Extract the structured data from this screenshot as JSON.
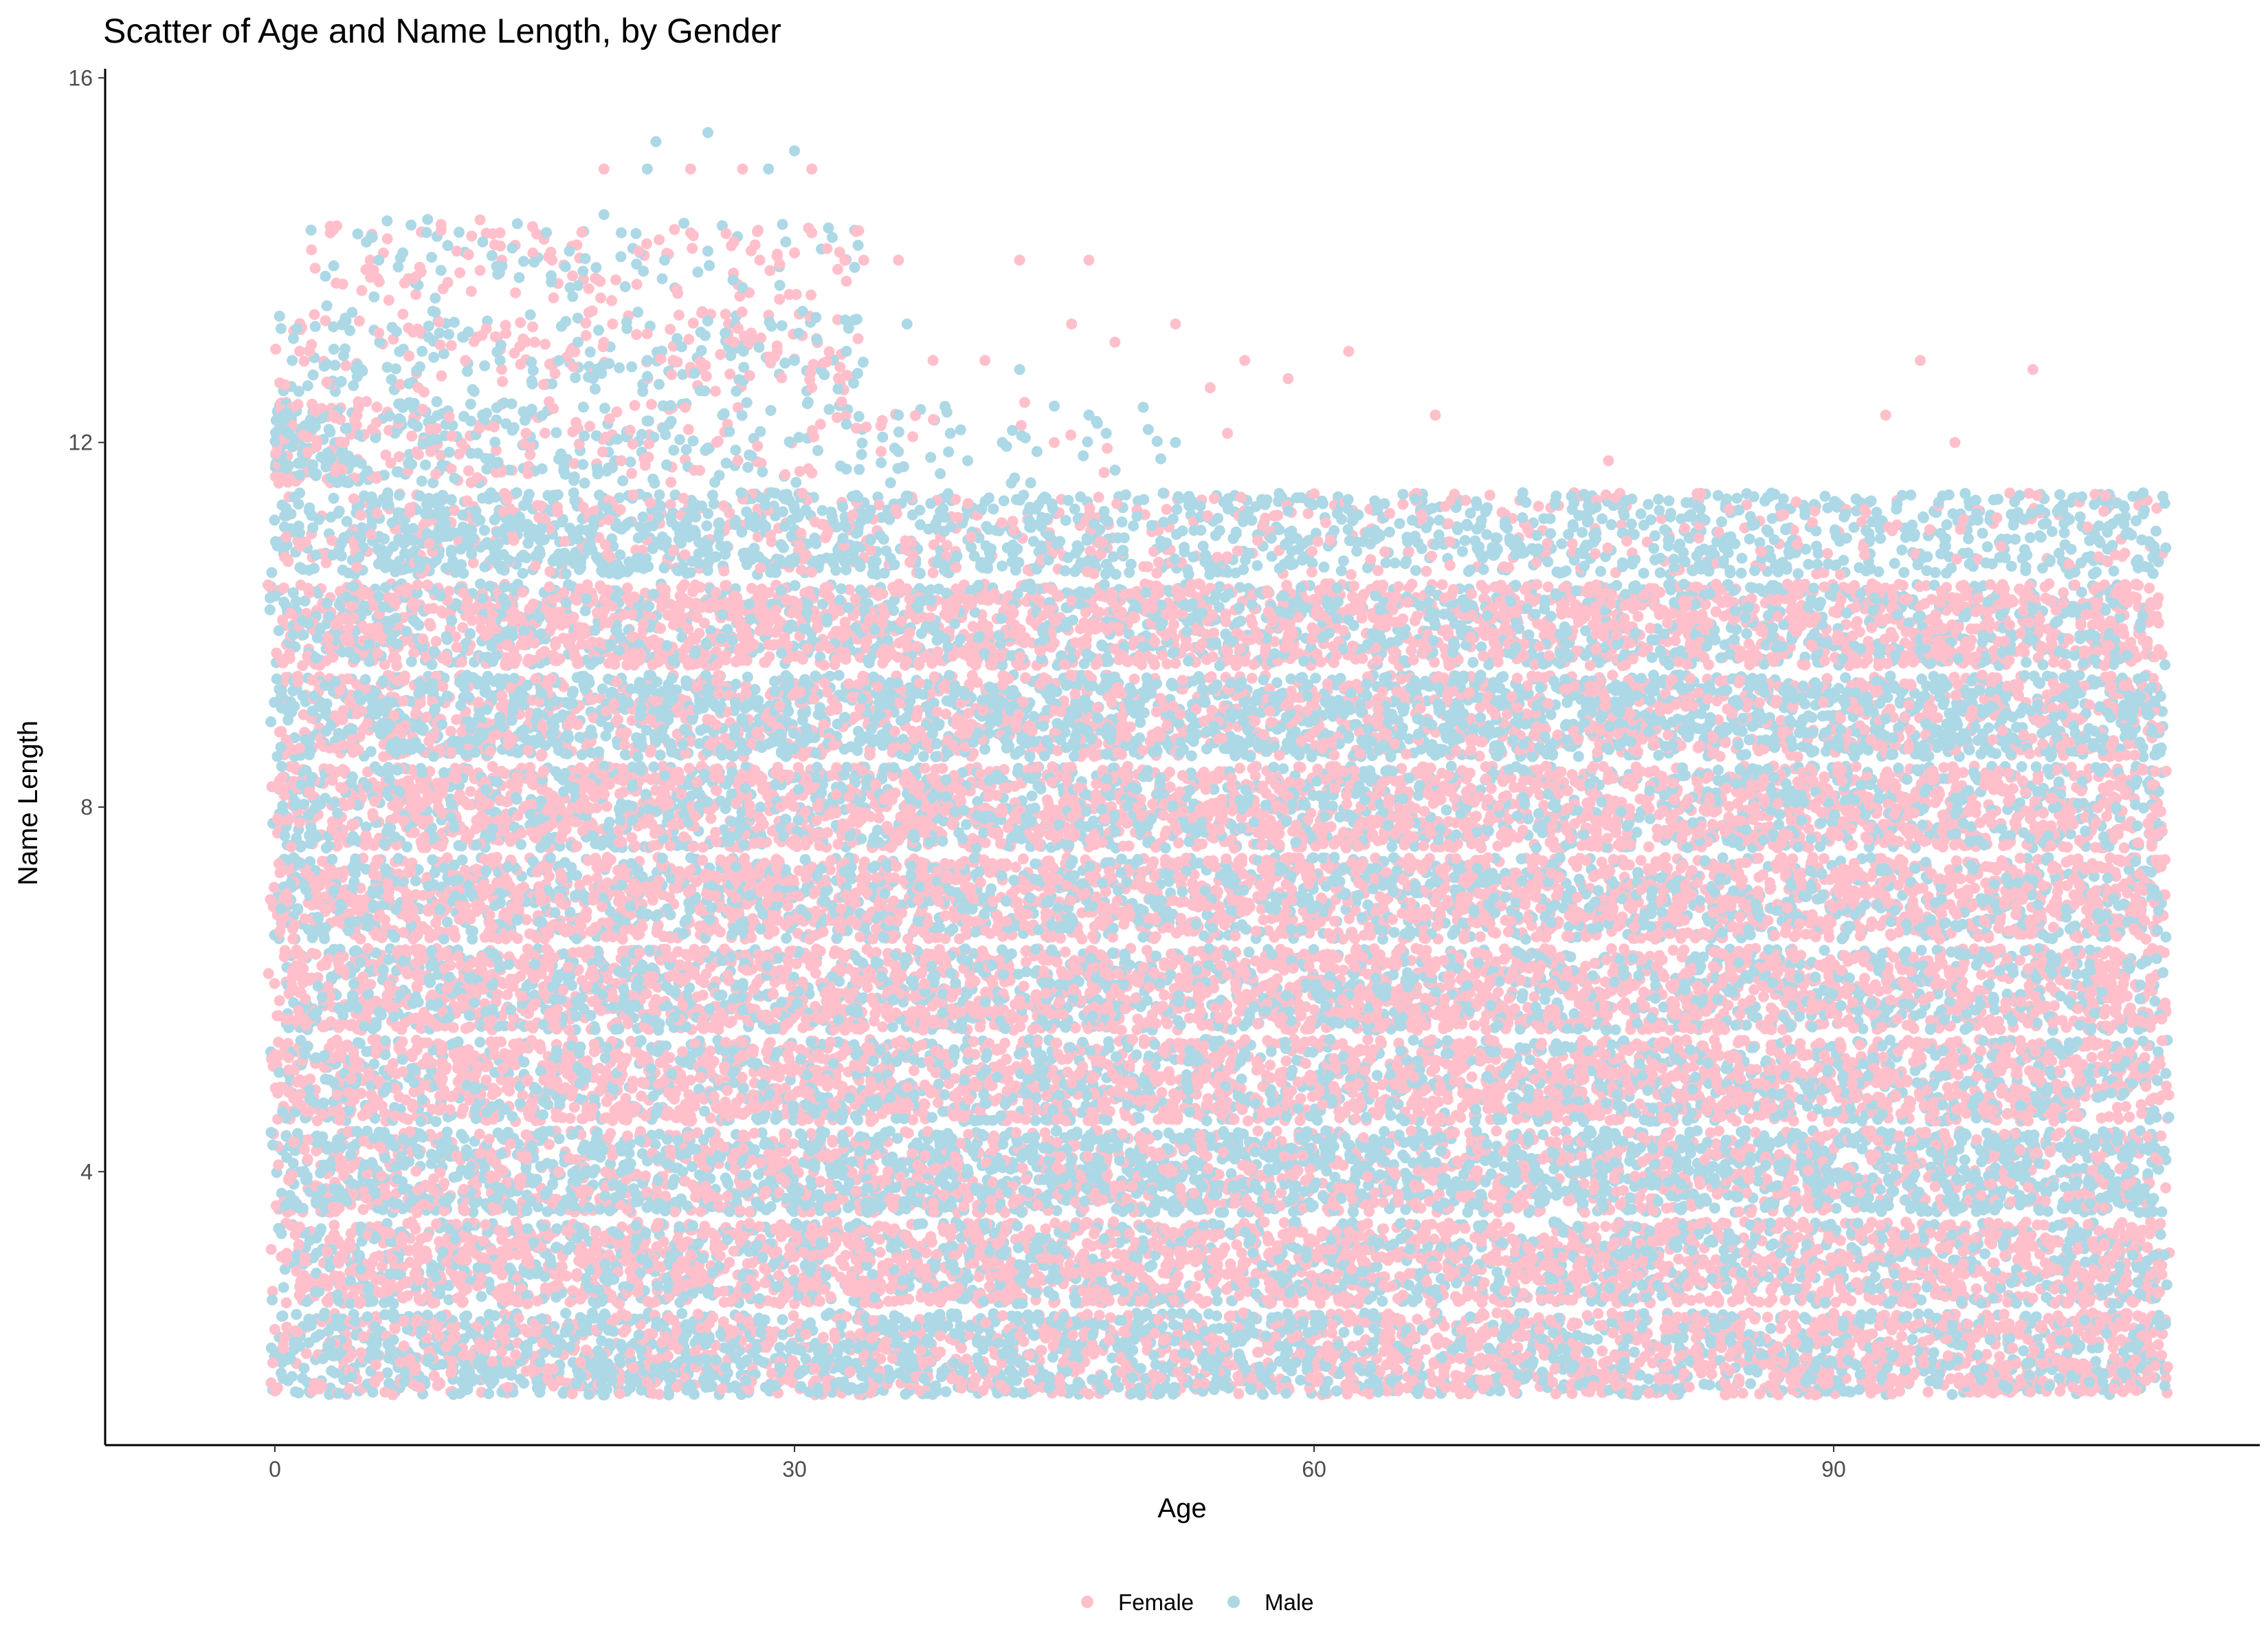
{
  "chart_data": {
    "type": "scatter",
    "title": "Scatter of Age and Name Length, by Gender",
    "xlabel": "Age",
    "ylabel": "Name Length",
    "xlim": [
      -9.8,
      114.6
    ],
    "ylim": [
      1.0,
      16.1
    ],
    "x_ticks": [
      0,
      30,
      60,
      90
    ],
    "y_ticks": [
      4,
      8,
      12,
      16
    ],
    "grid": false,
    "legend_position": "bottom",
    "jitter": {
      "x": 0.45,
      "y": 0.45
    },
    "colors": {
      "Female": "#FFC0CB",
      "Male": "#ADD8E6"
    },
    "series": [
      {
        "name": "Female",
        "color": "#FFC0CB",
        "name_length_levels": [
          2,
          3,
          4,
          5,
          6,
          7,
          8,
          9,
          10,
          11,
          12,
          13,
          14,
          15
        ],
        "dominant_levels": [
          3,
          5,
          6,
          7,
          8,
          10
        ],
        "sparse_points": [
          [
            3.2,
            14.3
          ],
          [
            5.5,
            14.0
          ],
          [
            8.0,
            13.8
          ],
          [
            10.5,
            14.1
          ],
          [
            13.0,
            14.3
          ],
          [
            16.0,
            14.0
          ],
          [
            18.5,
            13.8
          ],
          [
            21.0,
            14.1
          ],
          [
            24.0,
            14.3
          ],
          [
            26.5,
            14.2
          ],
          [
            28.0,
            14.0
          ],
          [
            31.0,
            14.3
          ],
          [
            32.5,
            13.9
          ],
          [
            34.0,
            14.0
          ],
          [
            36.0,
            14.0
          ],
          [
            43.0,
            14.0
          ],
          [
            47.0,
            14.0
          ],
          [
            2.0,
            13.0
          ],
          [
            6.0,
            13.2
          ],
          [
            11.0,
            12.9
          ],
          [
            15.0,
            13.1
          ],
          [
            19.5,
            13.3
          ],
          [
            23.0,
            12.9
          ],
          [
            27.5,
            13.2
          ],
          [
            29.0,
            13.0
          ],
          [
            38.0,
            12.9
          ],
          [
            41.0,
            12.9
          ],
          [
            46.0,
            13.3
          ],
          [
            48.5,
            13.1
          ],
          [
            52.0,
            13.3
          ],
          [
            54.0,
            12.6
          ],
          [
            56.0,
            12.9
          ],
          [
            58.5,
            12.7
          ],
          [
            62.0,
            13.0
          ],
          [
            67.0,
            12.3
          ],
          [
            77.0,
            11.8
          ],
          [
            93.0,
            12.3
          ],
          [
            95.0,
            12.9
          ],
          [
            97.0,
            12.0
          ],
          [
            101.5,
            12.8
          ],
          [
            4.0,
            12.0
          ],
          [
            9.0,
            11.9
          ],
          [
            14.5,
            12.1
          ],
          [
            20.0,
            11.8
          ],
          [
            25.5,
            12.0
          ],
          [
            31.5,
            12.2
          ],
          [
            35.0,
            11.9
          ],
          [
            45.0,
            12.0
          ],
          [
            55.0,
            12.1
          ],
          [
            31.0,
            15.0
          ],
          [
            24.0,
            15.0
          ],
          [
            19.0,
            15.0
          ],
          [
            27.0,
            15.0
          ]
        ]
      },
      {
        "name": "Male",
        "color": "#ADD8E6",
        "name_length_levels": [
          2,
          3,
          4,
          5,
          6,
          7,
          8,
          9,
          10,
          11,
          12,
          13,
          14,
          15
        ],
        "dominant_levels": [
          2,
          3,
          4,
          7,
          9,
          11
        ],
        "sparse_points": [
          [
            3.0,
            13.5
          ],
          [
            6.0,
            14.0
          ],
          [
            9.5,
            13.2
          ],
          [
            12.0,
            14.2
          ],
          [
            14.0,
            14.4
          ],
          [
            17.0,
            14.1
          ],
          [
            20.0,
            14.3
          ],
          [
            22.5,
            14.0
          ],
          [
            25.0,
            14.1
          ],
          [
            27.0,
            13.7
          ],
          [
            29.5,
            14.2
          ],
          [
            1.0,
            12.9
          ],
          [
            5.0,
            12.8
          ],
          [
            8.5,
            13.0
          ],
          [
            13.0,
            12.9
          ],
          [
            17.5,
            13.1
          ],
          [
            21.5,
            12.9
          ],
          [
            26.0,
            13.2
          ],
          [
            30.0,
            12.9
          ],
          [
            33.0,
            13.0
          ],
          [
            36.5,
            13.3
          ],
          [
            43.0,
            12.8
          ],
          [
            22.0,
            15.3
          ],
          [
            25.0,
            15.4
          ],
          [
            30.0,
            15.2
          ],
          [
            21.5,
            15.0
          ],
          [
            28.5,
            15.0
          ],
          [
            19.0,
            14.5
          ],
          [
            33.0,
            12.2
          ],
          [
            36.0,
            12.3
          ],
          [
            39.0,
            12.1
          ],
          [
            42.0,
            12.0
          ],
          [
            45.0,
            12.4
          ],
          [
            47.0,
            12.3
          ],
          [
            52.0,
            12.0
          ],
          [
            36.0,
            11.9
          ],
          [
            40.0,
            11.8
          ],
          [
            44.0,
            11.9
          ],
          [
            48.0,
            12.1
          ]
        ]
      }
    ]
  }
}
